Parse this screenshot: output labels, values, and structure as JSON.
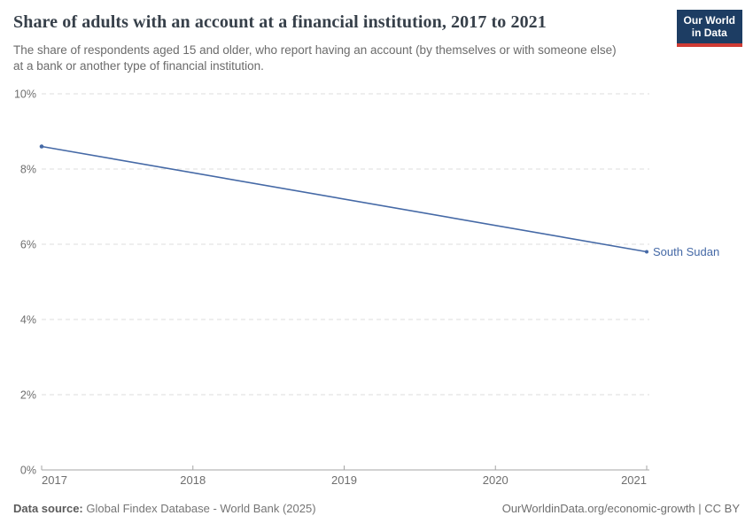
{
  "header": {
    "title": "Share of adults with an account at a financial institution, 2017 to 2021",
    "subtitle": "The share of respondents aged 15 and older, who report having an account (by themselves or with someone else) at a bank or another type of financial institution.",
    "logo": {
      "line1": "Our World",
      "line2": "in Data"
    }
  },
  "chart_data": {
    "type": "line",
    "title": "Share of adults with an account at a financial institution, 2017 to 2021",
    "x": [
      2017,
      2021
    ],
    "series": [
      {
        "name": "South Sudan",
        "values": [
          8.6,
          5.8
        ],
        "color": "#4569a6"
      }
    ],
    "xlim": [
      2017,
      2021
    ],
    "ylim": [
      0,
      10
    ],
    "xticks": [
      2017,
      2018,
      2019,
      2020,
      2021
    ],
    "yticks": [
      0,
      2,
      4,
      6,
      8,
      10
    ],
    "ytick_suffix": "%",
    "xlabel": "",
    "ylabel": "",
    "grid": "horizontal-dashed",
    "legend_position": "line-end-label"
  },
  "footer": {
    "source_label": "Data source:",
    "source_text": "Global Findex Database - World Bank (2025)",
    "right_text": "OurWorldinData.org/economic-growth | CC BY"
  },
  "colors": {
    "line": "#4569a6",
    "grid": "#dddddd",
    "axis": "#a5a5a5",
    "tick_text": "#6e6e6e",
    "title_text": "#37404a",
    "logo_bg": "#1d3d63",
    "logo_red": "#cf3b34"
  }
}
